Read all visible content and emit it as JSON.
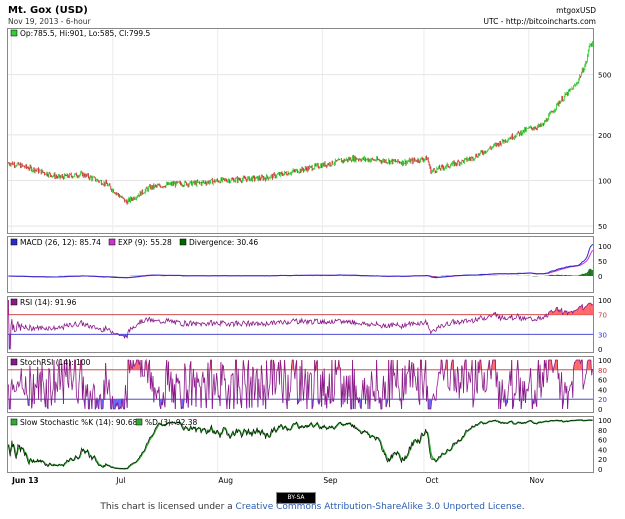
{
  "header": {
    "title": "Mt. Gox (USD)",
    "subtitle": "Nov 19, 2013 - 6-hour",
    "symbol": "mtgoxUSD",
    "source": "UTC - http://bitcoincharts.com"
  },
  "legends": {
    "price": "Op:785.5, Hi:901, Lo:585, Cl:799.5",
    "macd": "MACD (26, 12): 85.74",
    "exp": "EXP (9): 55.28",
    "divergence": "Divergence: 30.46",
    "rsi": "RSI (14): 91.96",
    "stochrsi": "StochRSI (14): 100",
    "slow_k": "Slow Stochastic %K (14): 90.68",
    "slow_d": "%D (3): 92.38"
  },
  "colors": {
    "up_candle": "#33cc33",
    "down_candle": "#cc3333",
    "macd": "#2b2bcc",
    "exp": "#cc33cc",
    "divergence": "#006600",
    "rsi": "#8a1a8a",
    "overbought_fill": "#ff6666",
    "oversold_fill": "#6666ff",
    "slow_k": "#000000",
    "slow_d": "#33aa33"
  },
  "chart_data": {
    "type": "candlestick",
    "x_labels": [
      "Jun 13",
      "Jul",
      "Aug",
      "Sep",
      "Oct",
      "Nov"
    ],
    "price": {
      "scale": "log",
      "yticks": [
        50,
        100,
        200,
        500
      ],
      "close": [
        {
          "date": "2013-06-01",
          "value": 130
        },
        {
          "date": "2013-06-08",
          "value": 118
        },
        {
          "date": "2013-06-15",
          "value": 105
        },
        {
          "date": "2013-06-22",
          "value": 110
        },
        {
          "date": "2013-06-29",
          "value": 95
        },
        {
          "date": "2013-07-05",
          "value": 72
        },
        {
          "date": "2013-07-12",
          "value": 90
        },
        {
          "date": "2013-07-19",
          "value": 95
        },
        {
          "date": "2013-07-26",
          "value": 96
        },
        {
          "date": "2013-08-02",
          "value": 100
        },
        {
          "date": "2013-08-15",
          "value": 104
        },
        {
          "date": "2013-08-31",
          "value": 125
        },
        {
          "date": "2013-09-10",
          "value": 140
        },
        {
          "date": "2013-09-25",
          "value": 132
        },
        {
          "date": "2013-10-02",
          "value": 140
        },
        {
          "date": "2013-10-03",
          "value": 115
        },
        {
          "date": "2013-10-15",
          "value": 140
        },
        {
          "date": "2013-10-25",
          "value": 185
        },
        {
          "date": "2013-11-01",
          "value": 220
        },
        {
          "date": "2013-11-05",
          "value": 230
        },
        {
          "date": "2013-11-10",
          "value": 330
        },
        {
          "date": "2013-11-15",
          "value": 430
        },
        {
          "date": "2013-11-18",
          "value": 600
        },
        {
          "date": "2013-11-19",
          "value": 800
        }
      ]
    },
    "macd": {
      "yticks": [
        0,
        50,
        100
      ]
    },
    "rsi": {
      "yticks": [
        0,
        30,
        70,
        100
      ],
      "overbought": 70,
      "oversold": 30
    },
    "stochrsi": {
      "yticks": [
        0,
        20,
        40,
        60,
        80,
        100
      ],
      "overbought": 80,
      "oversold": 20
    },
    "slow_stochastic": {
      "yticks": [
        0,
        20,
        40,
        60,
        80,
        100
      ]
    }
  },
  "footer": {
    "cc_badge": "BY-SA",
    "license_prefix": "This chart is licensed under a ",
    "license_link": "Creative Commons Attribution-ShareAlike 3.0 Unported License",
    "license_suffix": "."
  }
}
